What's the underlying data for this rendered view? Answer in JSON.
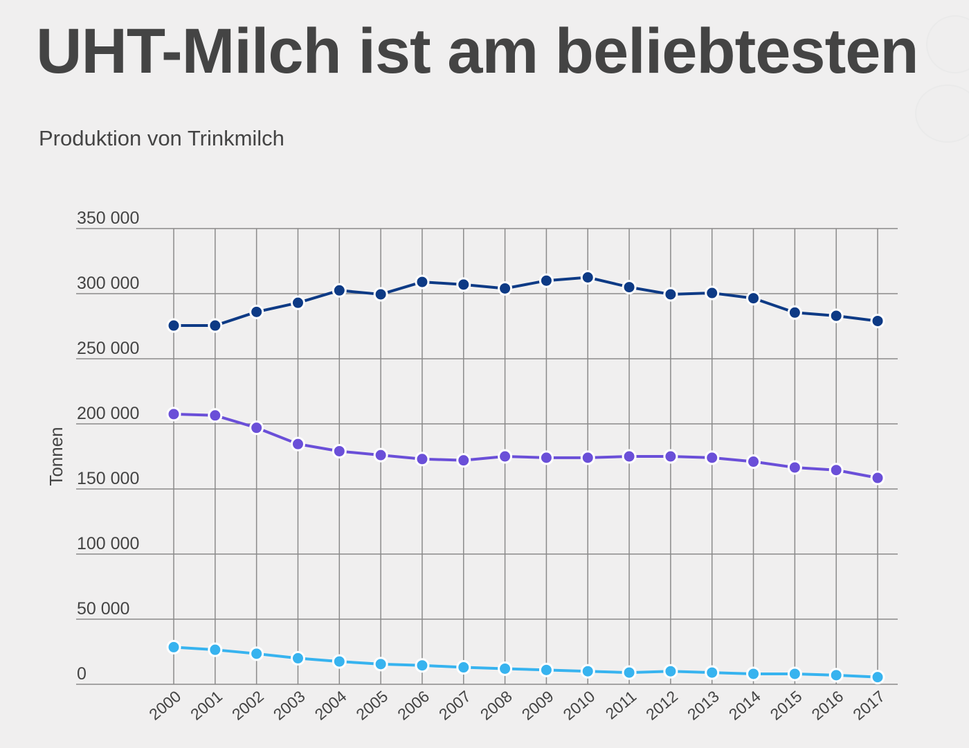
{
  "title": "UHT-Milch ist am beliebtesten",
  "subtitle": "Produktion von Trinkmilch",
  "chart_data": {
    "type": "line",
    "title": "UHT-Milch ist am beliebtesten",
    "subtitle": "Produktion von Trinkmilch",
    "xlabel": "",
    "ylabel": "Tonnen",
    "ylim": [
      0,
      350000
    ],
    "yticks": [
      0,
      50000,
      100000,
      150000,
      200000,
      250000,
      300000,
      350000
    ],
    "ytick_labels": [
      "0",
      "50 000",
      "100 000",
      "150 000",
      "200 000",
      "250 000",
      "300 000",
      "350 000"
    ],
    "grid": true,
    "legend": "none",
    "categories": [
      "2000",
      "2001",
      "2002",
      "2003",
      "2004",
      "2005",
      "2006",
      "2007",
      "2008",
      "2009",
      "2010",
      "2011",
      "2012",
      "2013",
      "2014",
      "2015",
      "2016",
      "2017"
    ],
    "series": [
      {
        "color": "#0d3a85",
        "values": [
          275500,
          275500,
          286000,
          293000,
          302500,
          299500,
          309000,
          307000,
          304000,
          310000,
          312500,
          305000,
          299500,
          300500,
          296500,
          285500,
          283000,
          279000
        ]
      },
      {
        "color": "#6a4fd8",
        "values": [
          207500,
          206500,
          197000,
          184500,
          179000,
          176000,
          173000,
          172000,
          175000,
          174000,
          174000,
          175000,
          175000,
          174000,
          171000,
          166500,
          164500,
          158500
        ]
      },
      {
        "color": "#37b3ef",
        "values": [
          28500,
          26500,
          23500,
          20000,
          17500,
          15500,
          14500,
          13000,
          12000,
          11000,
          10000,
          9000,
          10000,
          9000,
          8000,
          8000,
          7000,
          5500
        ]
      }
    ]
  }
}
